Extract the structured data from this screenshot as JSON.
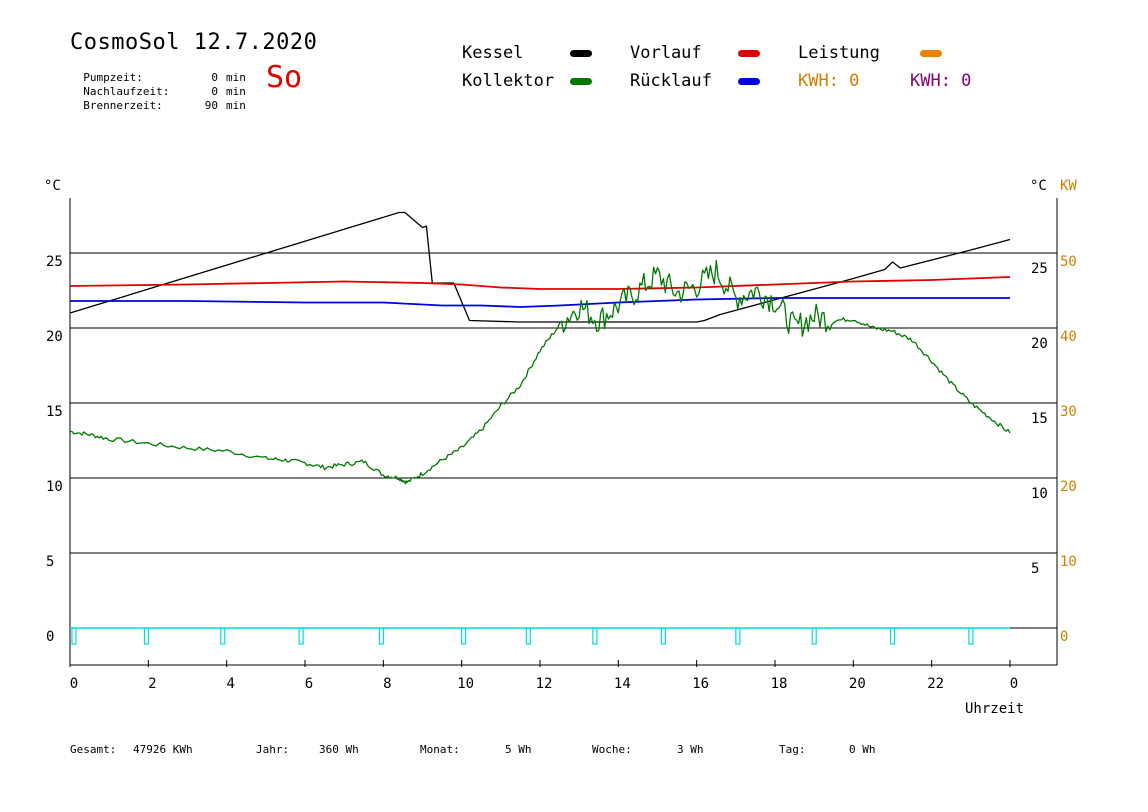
{
  "header": {
    "title": "CosmoSol 12.7.2020",
    "day": "So",
    "info": [
      {
        "label": "Pumpzeit:",
        "value": "0",
        "unit": "min"
      },
      {
        "label": "Nachlaufzeit:",
        "value": "0",
        "unit": "min"
      },
      {
        "label": "Brennerzeit:",
        "value": "90",
        "unit": "min"
      }
    ]
  },
  "legend": {
    "kessel": "Kessel",
    "kollektor": "Kollektor",
    "vorlauf": "Vorlauf",
    "ruecklauf": "Rücklauf",
    "leistung": "Leistung",
    "kwh_1": "KWH: 0",
    "kwh_2": "KWH: 0"
  },
  "colors": {
    "kessel": "#000000",
    "kollektor": "#007800",
    "vorlauf": "#e00000",
    "ruecklauf": "#0000e0",
    "leistung": "#f08000",
    "kw_axis": "#d08000",
    "kwh_2": "#800080",
    "day": "#e00000",
    "pump": "#00dddd"
  },
  "axes": {
    "left_unit": "°C",
    "right_unit": "°C",
    "kw_unit": "KW",
    "xlabel": "Uhrzeit"
  },
  "footer": {
    "gesamt_label": "Gesamt:",
    "gesamt_value": "47926 KWh",
    "jahr_label": "Jahr:",
    "jahr_value": "360 Wh",
    "monat_label": "Monat:",
    "monat_value": "5 Wh",
    "woche_label": "Woche:",
    "woche_value": "3 Wh",
    "tag_label": "Tag:",
    "tag_value": "0 Wh"
  },
  "chart_data": {
    "type": "line",
    "xlabel": "Uhrzeit",
    "x_ticks": [
      "0",
      "2",
      "4",
      "6",
      "8",
      "10",
      "12",
      "14",
      "16",
      "18",
      "20",
      "22",
      "0"
    ],
    "xlim": [
      0,
      24
    ],
    "ylim": [
      -1.5,
      27.5
    ],
    "left_ticks": [
      0,
      5,
      10,
      15,
      20,
      25
    ],
    "right_ticks": [
      5,
      10,
      15,
      20,
      25
    ],
    "kw_ticks": [
      0,
      10,
      20,
      30,
      40,
      50
    ],
    "gridlines": [
      0,
      5,
      10,
      15,
      20,
      25
    ],
    "series": [
      {
        "name": "Kessel",
        "key": "kessel",
        "x": [
          0,
          8.4,
          8.55,
          9.0,
          9.1,
          9.25,
          9.8,
          10.2,
          11.5,
          16.0,
          16.2,
          16.6,
          20.0,
          20.8,
          21.0,
          21.2,
          23.0,
          24.0
        ],
        "y": [
          21.0,
          27.7,
          27.7,
          26.7,
          26.8,
          23.0,
          23.0,
          20.5,
          20.4,
          20.4,
          20.5,
          20.9,
          23.3,
          23.9,
          24.4,
          24.0,
          25.2,
          25.9
        ]
      },
      {
        "name": "Vorlauf",
        "key": "vorlauf",
        "x": [
          0,
          3,
          7,
          9,
          10,
          11,
          12,
          14,
          16,
          18,
          20,
          22,
          24
        ],
        "y": [
          22.8,
          22.9,
          23.1,
          23.0,
          22.9,
          22.7,
          22.6,
          22.6,
          22.7,
          22.9,
          23.1,
          23.2,
          23.4
        ]
      },
      {
        "name": "Rücklauf",
        "key": "ruecklauf",
        "x": [
          0,
          3,
          6,
          8,
          9.5,
          10.5,
          11.5,
          12.5,
          14,
          16,
          18,
          20,
          22,
          24
        ],
        "y": [
          21.8,
          21.8,
          21.7,
          21.7,
          21.5,
          21.5,
          21.4,
          21.5,
          21.7,
          21.9,
          22.0,
          22.0,
          22.0,
          22.0
        ]
      },
      {
        "name": "Kollektor",
        "key": "kollektor",
        "x": [
          0,
          0.5,
          1,
          2,
          3,
          4,
          5,
          5.5,
          6,
          6.5,
          7,
          7.5,
          8,
          8.4,
          8.6,
          9,
          9.5,
          10,
          10.5,
          11,
          11.5,
          12,
          12.5,
          13,
          13.5,
          14,
          14.5,
          15,
          15.5,
          16,
          16.5,
          17,
          17.5,
          18,
          18.5,
          19,
          19.5,
          20,
          20.5,
          21,
          21.5,
          22,
          22.5,
          23,
          23.5,
          24
        ],
        "y": [
          13.1,
          12.9,
          12.6,
          12.3,
          12.0,
          11.8,
          11.3,
          11.2,
          11.0,
          10.7,
          10.9,
          11.1,
          10.2,
          10.0,
          9.7,
          10.3,
          11.2,
          12.0,
          13.2,
          14.8,
          16.2,
          18.5,
          20.2,
          21.5,
          20.5,
          21.5,
          22.5,
          23.5,
          22.3,
          22.8,
          23.8,
          22.0,
          22.5,
          21.8,
          20.0,
          20.8,
          20.5,
          20.6,
          20.0,
          19.8,
          19.2,
          17.8,
          16.3,
          15.0,
          14.0,
          13.0
        ]
      }
    ],
    "pump_marks_hours": [
      0.05,
      1.9,
      3.85,
      5.85,
      7.9,
      10.0,
      11.65,
      13.35,
      15.1,
      17.0,
      18.95,
      20.95,
      22.95
    ],
    "pump_level": 0
  }
}
